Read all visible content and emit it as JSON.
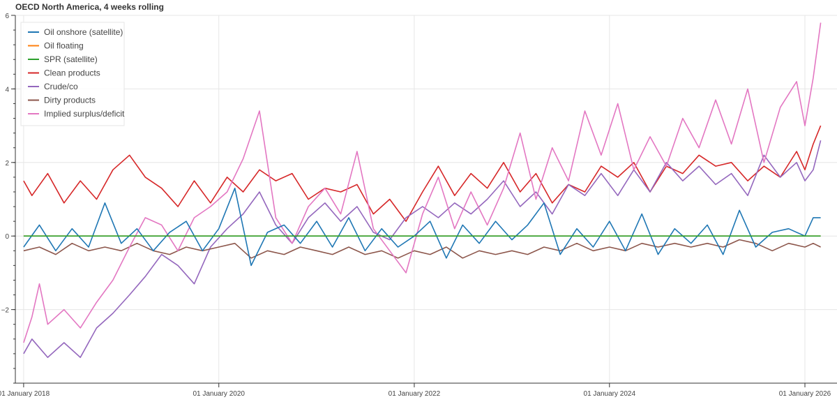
{
  "chart_data": {
    "type": "line",
    "title": "OECD North America, 4 weeks rolling",
    "xlabel": "",
    "ylabel": "",
    "xlim": [
      "2017-12-01",
      "2026-05-01"
    ],
    "ylim": [
      -4,
      6
    ],
    "grid": true,
    "legend_position": "top-left",
    "x_ticks": [
      {
        "date": "2018-01-01",
        "label": "01 January 2018"
      },
      {
        "date": "2020-01-01",
        "label": "01 January 2020"
      },
      {
        "date": "2022-01-01",
        "label": "01 January 2022"
      },
      {
        "date": "2024-01-01",
        "label": "01 January 2024"
      },
      {
        "date": "2026-01-01",
        "label": "01 January 2026"
      }
    ],
    "y_ticks": [
      {
        "value": -2,
        "label": "−2"
      },
      {
        "value": 0,
        "label": "0"
      },
      {
        "value": 2,
        "label": "2"
      },
      {
        "value": 4,
        "label": "4"
      },
      {
        "value": 6,
        "label": "6"
      }
    ],
    "series": [
      {
        "name": "Oil onshore (satellite)",
        "color": "#1f77b4",
        "points": [
          [
            "2018-01-01",
            -0.3
          ],
          [
            "2018-03-01",
            0.3
          ],
          [
            "2018-05-01",
            -0.4
          ],
          [
            "2018-07-01",
            0.2
          ],
          [
            "2018-09-01",
            -0.3
          ],
          [
            "2018-11-01",
            0.9
          ],
          [
            "2019-01-01",
            -0.2
          ],
          [
            "2019-03-01",
            0.2
          ],
          [
            "2019-05-01",
            -0.4
          ],
          [
            "2019-07-01",
            0.1
          ],
          [
            "2019-09-01",
            0.4
          ],
          [
            "2019-11-01",
            -0.4
          ],
          [
            "2020-01-01",
            0.2
          ],
          [
            "2020-03-01",
            1.3
          ],
          [
            "2020-05-01",
            -0.8
          ],
          [
            "2020-07-01",
            0.1
          ],
          [
            "2020-09-01",
            0.3
          ],
          [
            "2020-11-01",
            -0.2
          ],
          [
            "2021-01-01",
            0.4
          ],
          [
            "2021-03-01",
            -0.3
          ],
          [
            "2021-05-01",
            0.5
          ],
          [
            "2021-07-01",
            -0.4
          ],
          [
            "2021-09-01",
            0.2
          ],
          [
            "2021-11-01",
            -0.3
          ],
          [
            "2022-01-01",
            0.0
          ],
          [
            "2022-03-01",
            0.4
          ],
          [
            "2022-05-01",
            -0.6
          ],
          [
            "2022-07-01",
            0.3
          ],
          [
            "2022-09-01",
            -0.2
          ],
          [
            "2022-11-01",
            0.4
          ],
          [
            "2023-01-01",
            -0.1
          ],
          [
            "2023-03-01",
            0.3
          ],
          [
            "2023-05-01",
            0.9
          ],
          [
            "2023-07-01",
            -0.5
          ],
          [
            "2023-09-01",
            0.2
          ],
          [
            "2023-11-01",
            -0.3
          ],
          [
            "2024-01-01",
            0.4
          ],
          [
            "2024-03-01",
            -0.4
          ],
          [
            "2024-05-01",
            0.6
          ],
          [
            "2024-07-01",
            -0.5
          ],
          [
            "2024-09-01",
            0.2
          ],
          [
            "2024-11-01",
            -0.2
          ],
          [
            "2025-01-01",
            0.3
          ],
          [
            "2025-03-01",
            -0.5
          ],
          [
            "2025-05-01",
            0.7
          ],
          [
            "2025-07-01",
            -0.3
          ],
          [
            "2025-09-01",
            0.1
          ],
          [
            "2025-11-01",
            0.2
          ],
          [
            "2026-01-01",
            0.0
          ],
          [
            "2026-02-01",
            0.5
          ],
          [
            "2026-03-01",
            0.5
          ]
        ]
      },
      {
        "name": "Oil floating",
        "color": "#ff7f0e",
        "points": [
          [
            "2018-01-01",
            0.0
          ],
          [
            "2026-03-01",
            0.0
          ]
        ]
      },
      {
        "name": "SPR (satellite)",
        "color": "#2ca02c",
        "points": [
          [
            "2018-01-01",
            0.0
          ],
          [
            "2026-03-01",
            0.0
          ]
        ]
      },
      {
        "name": "Clean products",
        "color": "#d62728",
        "points": [
          [
            "2018-01-01",
            1.5
          ],
          [
            "2018-02-01",
            1.1
          ],
          [
            "2018-04-01",
            1.7
          ],
          [
            "2018-06-01",
            0.9
          ],
          [
            "2018-08-01",
            1.5
          ],
          [
            "2018-10-01",
            1.0
          ],
          [
            "2018-12-01",
            1.8
          ],
          [
            "2019-02-01",
            2.2
          ],
          [
            "2019-04-01",
            1.6
          ],
          [
            "2019-06-01",
            1.3
          ],
          [
            "2019-08-01",
            0.8
          ],
          [
            "2019-10-01",
            1.5
          ],
          [
            "2019-12-01",
            0.9
          ],
          [
            "2020-02-01",
            1.6
          ],
          [
            "2020-04-01",
            1.2
          ],
          [
            "2020-06-01",
            1.8
          ],
          [
            "2020-08-01",
            1.5
          ],
          [
            "2020-10-01",
            1.7
          ],
          [
            "2020-12-01",
            1.0
          ],
          [
            "2021-02-01",
            1.3
          ],
          [
            "2021-04-01",
            1.2
          ],
          [
            "2021-06-01",
            1.4
          ],
          [
            "2021-08-01",
            0.6
          ],
          [
            "2021-10-01",
            1.0
          ],
          [
            "2021-12-01",
            0.4
          ],
          [
            "2022-02-01",
            1.2
          ],
          [
            "2022-04-01",
            1.9
          ],
          [
            "2022-06-01",
            1.1
          ],
          [
            "2022-08-01",
            1.7
          ],
          [
            "2022-10-01",
            1.3
          ],
          [
            "2022-12-01",
            2.0
          ],
          [
            "2023-02-01",
            1.2
          ],
          [
            "2023-04-01",
            1.7
          ],
          [
            "2023-06-01",
            0.9
          ],
          [
            "2023-08-01",
            1.4
          ],
          [
            "2023-10-01",
            1.2
          ],
          [
            "2023-12-01",
            1.9
          ],
          [
            "2024-02-01",
            1.6
          ],
          [
            "2024-04-01",
            2.0
          ],
          [
            "2024-06-01",
            1.2
          ],
          [
            "2024-08-01",
            1.9
          ],
          [
            "2024-10-01",
            1.7
          ],
          [
            "2024-12-01",
            2.2
          ],
          [
            "2025-02-01",
            1.9
          ],
          [
            "2025-04-01",
            2.0
          ],
          [
            "2025-06-01",
            1.5
          ],
          [
            "2025-08-01",
            1.9
          ],
          [
            "2025-10-01",
            1.6
          ],
          [
            "2025-12-01",
            2.3
          ],
          [
            "2026-01-01",
            1.8
          ],
          [
            "2026-02-01",
            2.5
          ],
          [
            "2026-03-01",
            3.0
          ]
        ]
      },
      {
        "name": "Crude/co",
        "color": "#9467bd",
        "points": [
          [
            "2018-01-01",
            -3.2
          ],
          [
            "2018-02-01",
            -2.8
          ],
          [
            "2018-04-01",
            -3.3
          ],
          [
            "2018-06-01",
            -2.9
          ],
          [
            "2018-08-01",
            -3.3
          ],
          [
            "2018-10-01",
            -2.5
          ],
          [
            "2018-12-01",
            -2.1
          ],
          [
            "2019-02-01",
            -1.6
          ],
          [
            "2019-04-01",
            -1.1
          ],
          [
            "2019-06-01",
            -0.5
          ],
          [
            "2019-08-01",
            -0.8
          ],
          [
            "2019-10-01",
            -1.3
          ],
          [
            "2019-12-01",
            -0.3
          ],
          [
            "2020-02-01",
            0.2
          ],
          [
            "2020-04-01",
            0.6
          ],
          [
            "2020-06-01",
            1.2
          ],
          [
            "2020-08-01",
            0.3
          ],
          [
            "2020-10-01",
            -0.2
          ],
          [
            "2020-12-01",
            0.5
          ],
          [
            "2021-02-01",
            0.9
          ],
          [
            "2021-04-01",
            0.4
          ],
          [
            "2021-06-01",
            0.8
          ],
          [
            "2021-08-01",
            0.1
          ],
          [
            "2021-10-01",
            -0.1
          ],
          [
            "2021-12-01",
            0.5
          ],
          [
            "2022-02-01",
            0.8
          ],
          [
            "2022-04-01",
            0.5
          ],
          [
            "2022-06-01",
            0.9
          ],
          [
            "2022-08-01",
            0.6
          ],
          [
            "2022-10-01",
            1.0
          ],
          [
            "2022-12-01",
            1.5
          ],
          [
            "2023-02-01",
            0.8
          ],
          [
            "2023-04-01",
            1.2
          ],
          [
            "2023-06-01",
            0.6
          ],
          [
            "2023-08-01",
            1.4
          ],
          [
            "2023-10-01",
            1.1
          ],
          [
            "2023-12-01",
            1.7
          ],
          [
            "2024-02-01",
            1.1
          ],
          [
            "2024-04-01",
            1.8
          ],
          [
            "2024-06-01",
            1.2
          ],
          [
            "2024-08-01",
            2.0
          ],
          [
            "2024-10-01",
            1.5
          ],
          [
            "2024-12-01",
            1.9
          ],
          [
            "2025-02-01",
            1.4
          ],
          [
            "2025-04-01",
            1.7
          ],
          [
            "2025-06-01",
            1.1
          ],
          [
            "2025-08-01",
            2.2
          ],
          [
            "2025-10-01",
            1.6
          ],
          [
            "2025-12-01",
            2.0
          ],
          [
            "2026-01-01",
            1.5
          ],
          [
            "2026-02-01",
            1.8
          ],
          [
            "2026-03-01",
            2.6
          ]
        ]
      },
      {
        "name": "Dirty products",
        "color": "#8c564b",
        "points": [
          [
            "2018-01-01",
            -0.4
          ],
          [
            "2018-03-01",
            -0.3
          ],
          [
            "2018-05-01",
            -0.5
          ],
          [
            "2018-07-01",
            -0.2
          ],
          [
            "2018-09-01",
            -0.4
          ],
          [
            "2018-11-01",
            -0.3
          ],
          [
            "2019-01-01",
            -0.4
          ],
          [
            "2019-03-01",
            -0.2
          ],
          [
            "2019-05-01",
            -0.4
          ],
          [
            "2019-07-01",
            -0.5
          ],
          [
            "2019-09-01",
            -0.3
          ],
          [
            "2019-11-01",
            -0.4
          ],
          [
            "2020-01-01",
            -0.3
          ],
          [
            "2020-03-01",
            -0.2
          ],
          [
            "2020-05-01",
            -0.6
          ],
          [
            "2020-07-01",
            -0.4
          ],
          [
            "2020-09-01",
            -0.5
          ],
          [
            "2020-11-01",
            -0.3
          ],
          [
            "2021-01-01",
            -0.4
          ],
          [
            "2021-03-01",
            -0.5
          ],
          [
            "2021-05-01",
            -0.3
          ],
          [
            "2021-07-01",
            -0.5
          ],
          [
            "2021-09-01",
            -0.4
          ],
          [
            "2021-11-01",
            -0.6
          ],
          [
            "2022-01-01",
            -0.4
          ],
          [
            "2022-03-01",
            -0.5
          ],
          [
            "2022-05-01",
            -0.3
          ],
          [
            "2022-07-01",
            -0.6
          ],
          [
            "2022-09-01",
            -0.4
          ],
          [
            "2022-11-01",
            -0.5
          ],
          [
            "2023-01-01",
            -0.4
          ],
          [
            "2023-03-01",
            -0.5
          ],
          [
            "2023-05-01",
            -0.3
          ],
          [
            "2023-07-01",
            -0.4
          ],
          [
            "2023-09-01",
            -0.2
          ],
          [
            "2023-11-01",
            -0.4
          ],
          [
            "2024-01-01",
            -0.3
          ],
          [
            "2024-03-01",
            -0.4
          ],
          [
            "2024-05-01",
            -0.2
          ],
          [
            "2024-07-01",
            -0.3
          ],
          [
            "2024-09-01",
            -0.2
          ],
          [
            "2024-11-01",
            -0.3
          ],
          [
            "2025-01-01",
            -0.2
          ],
          [
            "2025-03-01",
            -0.3
          ],
          [
            "2025-05-01",
            -0.1
          ],
          [
            "2025-07-01",
            -0.2
          ],
          [
            "2025-09-01",
            -0.4
          ],
          [
            "2025-11-01",
            -0.2
          ],
          [
            "2026-01-01",
            -0.3
          ],
          [
            "2026-02-01",
            -0.2
          ],
          [
            "2026-03-01",
            -0.3
          ]
        ]
      },
      {
        "name": "Implied surplus/deficit",
        "color": "#e377c2",
        "points": [
          [
            "2018-01-01",
            -2.9
          ],
          [
            "2018-02-01",
            -2.2
          ],
          [
            "2018-03-01",
            -1.3
          ],
          [
            "2018-04-01",
            -2.4
          ],
          [
            "2018-06-01",
            -2.0
          ],
          [
            "2018-08-01",
            -2.5
          ],
          [
            "2018-10-01",
            -1.8
          ],
          [
            "2018-12-01",
            -1.2
          ],
          [
            "2019-02-01",
            -0.3
          ],
          [
            "2019-04-01",
            0.5
          ],
          [
            "2019-06-01",
            0.3
          ],
          [
            "2019-08-01",
            -0.4
          ],
          [
            "2019-10-01",
            0.5
          ],
          [
            "2019-12-01",
            0.8
          ],
          [
            "2020-02-01",
            1.2
          ],
          [
            "2020-04-01",
            2.1
          ],
          [
            "2020-06-01",
            3.4
          ],
          [
            "2020-08-01",
            0.5
          ],
          [
            "2020-10-01",
            -0.2
          ],
          [
            "2020-12-01",
            0.8
          ],
          [
            "2021-02-01",
            1.3
          ],
          [
            "2021-04-01",
            0.6
          ],
          [
            "2021-06-01",
            2.3
          ],
          [
            "2021-08-01",
            0.2
          ],
          [
            "2021-10-01",
            -0.4
          ],
          [
            "2021-12-01",
            -1.0
          ],
          [
            "2022-02-01",
            0.6
          ],
          [
            "2022-04-01",
            1.6
          ],
          [
            "2022-06-01",
            0.2
          ],
          [
            "2022-08-01",
            1.2
          ],
          [
            "2022-10-01",
            0.3
          ],
          [
            "2022-12-01",
            1.3
          ],
          [
            "2023-02-01",
            2.8
          ],
          [
            "2023-04-01",
            1.0
          ],
          [
            "2023-06-01",
            2.4
          ],
          [
            "2023-08-01",
            1.5
          ],
          [
            "2023-10-01",
            3.4
          ],
          [
            "2023-12-01",
            2.2
          ],
          [
            "2024-02-01",
            3.6
          ],
          [
            "2024-04-01",
            1.8
          ],
          [
            "2024-06-01",
            2.7
          ],
          [
            "2024-08-01",
            1.9
          ],
          [
            "2024-10-01",
            3.2
          ],
          [
            "2024-12-01",
            2.4
          ],
          [
            "2025-02-01",
            3.7
          ],
          [
            "2025-04-01",
            2.5
          ],
          [
            "2025-06-01",
            4.0
          ],
          [
            "2025-08-01",
            2.0
          ],
          [
            "2025-10-01",
            3.5
          ],
          [
            "2025-12-01",
            4.2
          ],
          [
            "2026-01-01",
            3.0
          ],
          [
            "2026-02-01",
            4.3
          ],
          [
            "2026-03-01",
            5.8
          ]
        ]
      }
    ]
  }
}
